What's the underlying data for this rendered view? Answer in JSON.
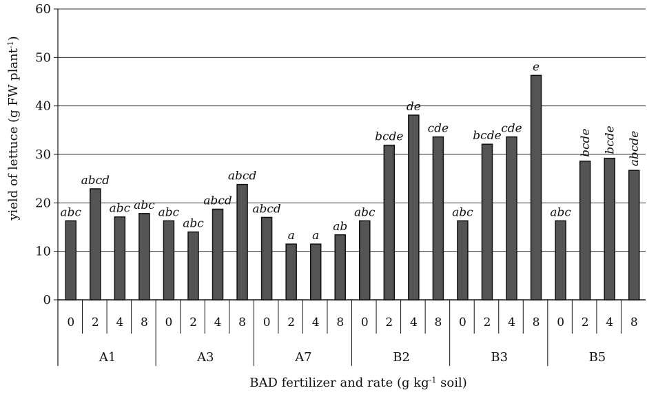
{
  "chart_data": {
    "type": "bar",
    "ylabel": "yield of lettuce (g FW plant",
    "ylabel_sup": "-1",
    "ylabel_end": ")",
    "xlabel": "BAD fertilizer and rate (g kg",
    "xlabel_sup": "-1",
    "xlabel_end": " soil)",
    "ylim": [
      0,
      60
    ],
    "yticks": [
      "0",
      "10",
      "20",
      "30",
      "40",
      "50",
      "60"
    ],
    "grid": true,
    "groups": [
      {
        "name": "A1",
        "bars": [
          {
            "rate": "0",
            "value": 16.3,
            "label": "abc"
          },
          {
            "rate": "2",
            "value": 22.9,
            "label": "abcd"
          },
          {
            "rate": "4",
            "value": 17.1,
            "label": "abc"
          },
          {
            "rate": "8",
            "value": 17.8,
            "label": "abc"
          }
        ]
      },
      {
        "name": "A3",
        "bars": [
          {
            "rate": "0",
            "value": 16.3,
            "label": "abc"
          },
          {
            "rate": "2",
            "value": 14.0,
            "label": "abc"
          },
          {
            "rate": "4",
            "value": 18.7,
            "label": "abcd"
          },
          {
            "rate": "8",
            "value": 23.8,
            "label": "abcd"
          }
        ]
      },
      {
        "name": "A7",
        "bars": [
          {
            "rate": "0",
            "value": 17.0,
            "label": "abcd"
          },
          {
            "rate": "2",
            "value": 11.5,
            "label": "a"
          },
          {
            "rate": "4",
            "value": 11.5,
            "label": "a"
          },
          {
            "rate": "8",
            "value": 13.4,
            "label": "ab"
          }
        ]
      },
      {
        "name": "B2",
        "bars": [
          {
            "rate": "0",
            "value": 16.3,
            "label": "abc"
          },
          {
            "rate": "2",
            "value": 31.9,
            "label": "bcde"
          },
          {
            "rate": "4",
            "value": 38.1,
            "label": "de"
          },
          {
            "rate": "8",
            "value": 33.6,
            "label": "cde"
          }
        ]
      },
      {
        "name": "B3",
        "bars": [
          {
            "rate": "0",
            "value": 16.3,
            "label": "abc"
          },
          {
            "rate": "2",
            "value": 32.1,
            "label": "bcde"
          },
          {
            "rate": "4",
            "value": 33.6,
            "label": "cde"
          },
          {
            "rate": "8",
            "value": 46.3,
            "label": "e"
          }
        ]
      },
      {
        "name": "B5",
        "bars": [
          {
            "rate": "0",
            "value": 16.3,
            "label": "abc"
          },
          {
            "rate": "2",
            "value": 28.6,
            "label": "bcde",
            "vertical": true
          },
          {
            "rate": "4",
            "value": 29.2,
            "label": "bcde",
            "vertical": true
          },
          {
            "rate": "8",
            "value": 26.7,
            "label": "abcde",
            "vertical": true
          }
        ]
      }
    ],
    "colors": {
      "bar_fill": "#545454",
      "bar_stroke": "#111111",
      "grid": "#333333",
      "axis": "#111111"
    }
  }
}
